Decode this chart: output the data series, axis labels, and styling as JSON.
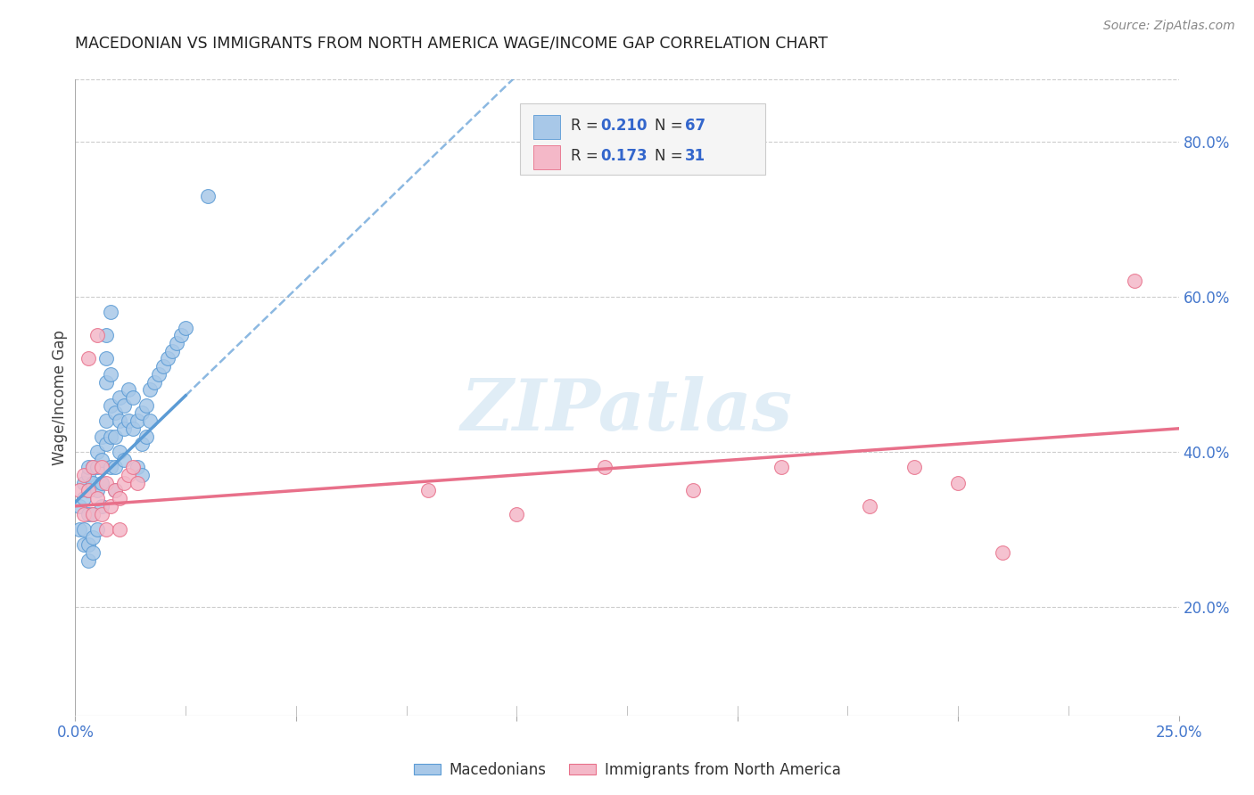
{
  "title": "MACEDONIAN VS IMMIGRANTS FROM NORTH AMERICA WAGE/INCOME GAP CORRELATION CHART",
  "source": "Source: ZipAtlas.com",
  "ylabel": "Wage/Income Gap",
  "xlim": [
    0.0,
    0.25
  ],
  "ylim": [
    0.06,
    0.88
  ],
  "blue_color": "#5B9BD5",
  "pink_color": "#E8708A",
  "blue_fill": "#A8C8E8",
  "pink_fill": "#F4B8C8",
  "legend_R1": "0.210",
  "legend_N1": "67",
  "legend_R2": "0.173",
  "legend_N2": "31",
  "watermark": "ZIPatlas",
  "background_color": "#FFFFFF",
  "grid_color": "#CCCCCC",
  "macedonians_x": [
    0.001,
    0.001,
    0.002,
    0.002,
    0.002,
    0.002,
    0.003,
    0.003,
    0.003,
    0.003,
    0.003,
    0.003,
    0.004,
    0.004,
    0.004,
    0.004,
    0.004,
    0.005,
    0.005,
    0.005,
    0.005,
    0.006,
    0.006,
    0.006,
    0.006,
    0.007,
    0.007,
    0.007,
    0.007,
    0.007,
    0.008,
    0.008,
    0.008,
    0.008,
    0.008,
    0.009,
    0.009,
    0.009,
    0.009,
    0.01,
    0.01,
    0.01,
    0.011,
    0.011,
    0.011,
    0.012,
    0.012,
    0.013,
    0.013,
    0.014,
    0.014,
    0.015,
    0.015,
    0.015,
    0.016,
    0.016,
    0.017,
    0.017,
    0.018,
    0.019,
    0.02,
    0.021,
    0.022,
    0.023,
    0.024,
    0.025,
    0.03
  ],
  "macedonians_y": [
    0.33,
    0.3,
    0.34,
    0.36,
    0.3,
    0.28,
    0.35,
    0.37,
    0.32,
    0.38,
    0.28,
    0.26,
    0.36,
    0.38,
    0.32,
    0.29,
    0.27,
    0.38,
    0.4,
    0.35,
    0.3,
    0.42,
    0.39,
    0.36,
    0.33,
    0.55,
    0.52,
    0.49,
    0.44,
    0.41,
    0.58,
    0.5,
    0.46,
    0.42,
    0.38,
    0.45,
    0.42,
    0.38,
    0.35,
    0.47,
    0.44,
    0.4,
    0.46,
    0.43,
    0.39,
    0.48,
    0.44,
    0.47,
    0.43,
    0.44,
    0.38,
    0.45,
    0.41,
    0.37,
    0.46,
    0.42,
    0.48,
    0.44,
    0.49,
    0.5,
    0.51,
    0.52,
    0.53,
    0.54,
    0.55,
    0.56,
    0.73
  ],
  "immigrants_x": [
    0.001,
    0.002,
    0.002,
    0.003,
    0.003,
    0.004,
    0.004,
    0.005,
    0.005,
    0.006,
    0.006,
    0.007,
    0.007,
    0.008,
    0.009,
    0.01,
    0.01,
    0.011,
    0.012,
    0.013,
    0.014,
    0.08,
    0.1,
    0.12,
    0.14,
    0.16,
    0.18,
    0.19,
    0.2,
    0.21,
    0.24
  ],
  "immigrants_y": [
    0.35,
    0.37,
    0.32,
    0.52,
    0.35,
    0.38,
    0.32,
    0.55,
    0.34,
    0.38,
    0.32,
    0.36,
    0.3,
    0.33,
    0.35,
    0.34,
    0.3,
    0.36,
    0.37,
    0.38,
    0.36,
    0.35,
    0.32,
    0.38,
    0.35,
    0.38,
    0.33,
    0.38,
    0.36,
    0.27,
    0.62
  ]
}
